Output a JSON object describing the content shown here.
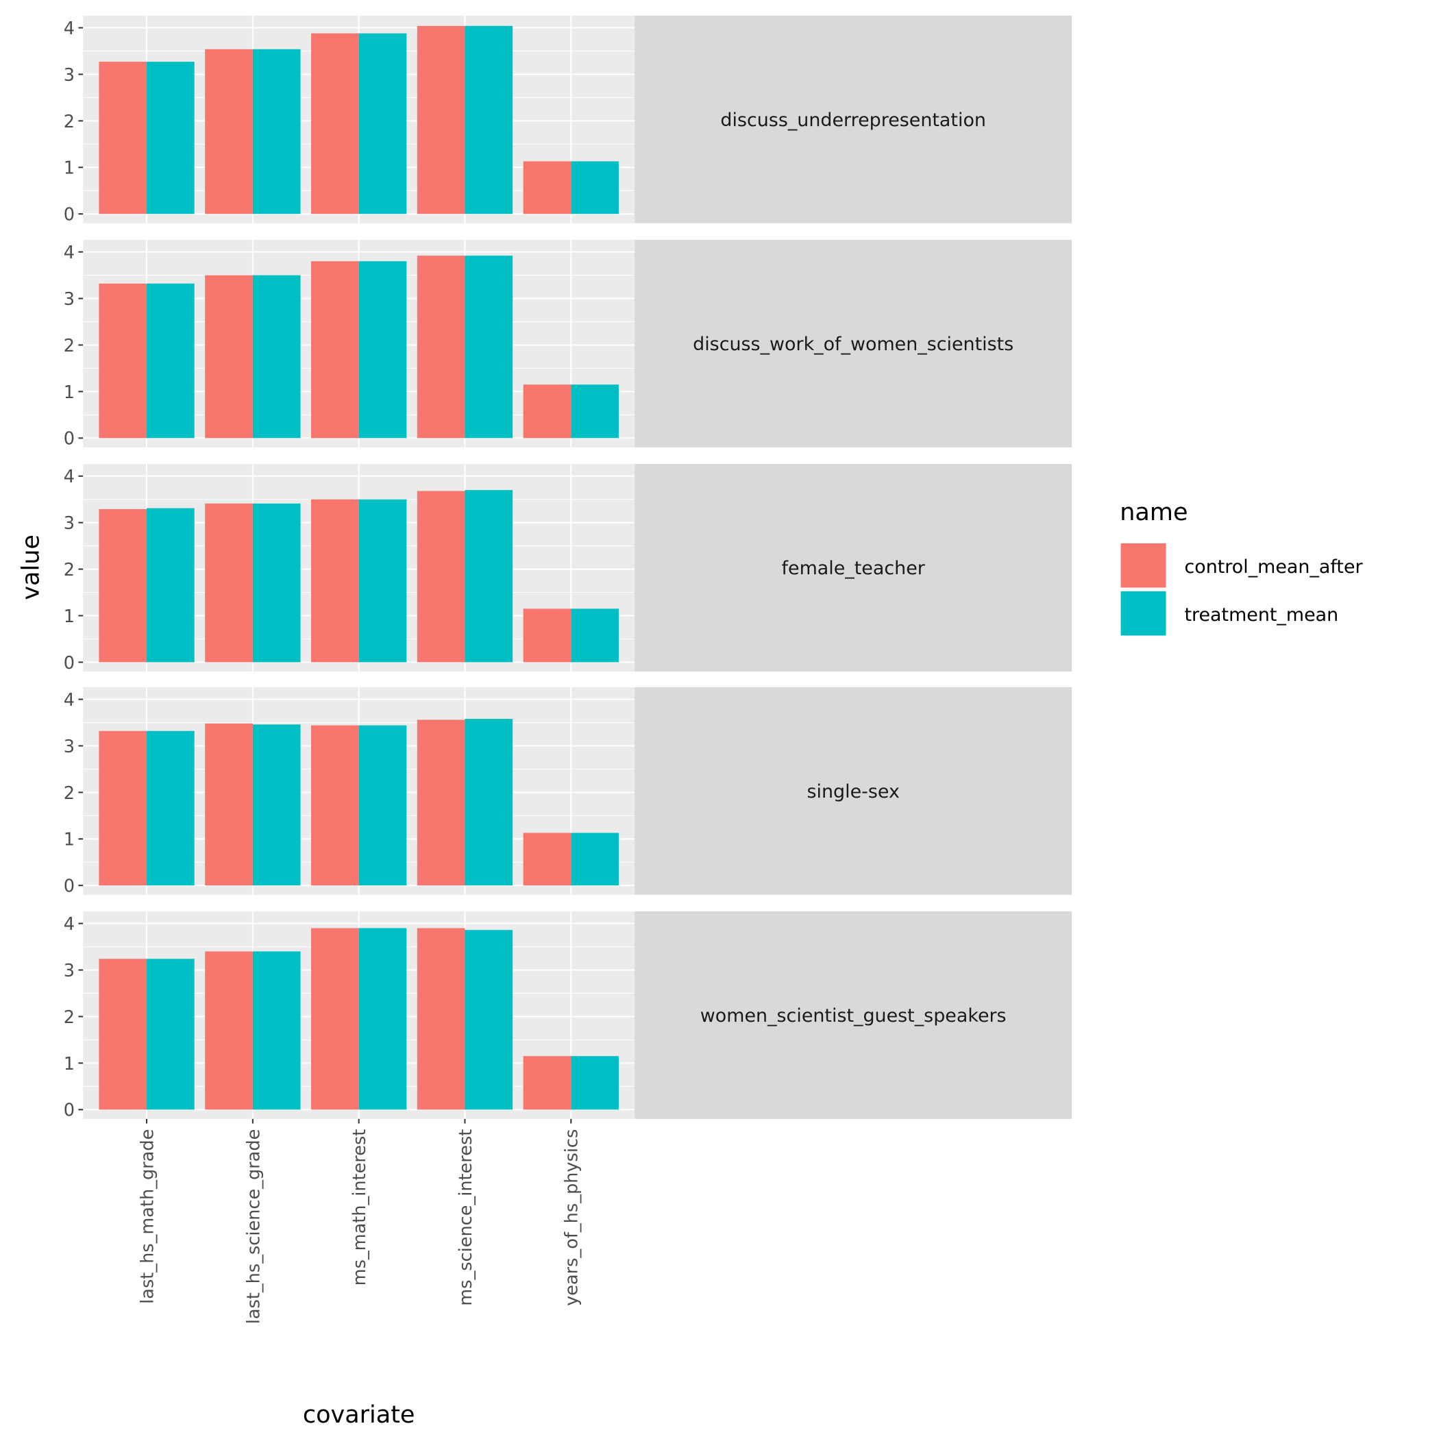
{
  "chart_data": {
    "type": "bar",
    "layout": "faceted bar chart, one row per facet, facet strips on the right",
    "xlabel": "covariate",
    "ylabel": "value",
    "ylim": [
      -0.2,
      4.26
    ],
    "y_ticks": [
      "0",
      "1",
      "2",
      "3",
      "4"
    ],
    "grid": true,
    "legend": {
      "title": "name",
      "position": "right"
    },
    "categories": [
      "last_hs_math_grade",
      "last_hs_science_grade",
      "ms_math_interest",
      "ms_science_interest",
      "years_of_hs_physics"
    ],
    "series_names": [
      "control_mean_after",
      "treatment_mean"
    ],
    "colors": {
      "control_mean_after": "#F8766D",
      "treatment_mean": "#00BFC4"
    },
    "facets": [
      {
        "label": "discuss_underrepresentation",
        "series": [
          {
            "name": "control_mean_after",
            "values": [
              3.27,
              3.54,
              3.88,
              4.04,
              1.13
            ]
          },
          {
            "name": "treatment_mean",
            "values": [
              3.27,
              3.54,
              3.88,
              4.04,
              1.13
            ]
          }
        ]
      },
      {
        "label": "discuss_work_of_women_scientists",
        "series": [
          {
            "name": "control_mean_after",
            "values": [
              3.32,
              3.5,
              3.8,
              3.92,
              1.15
            ]
          },
          {
            "name": "treatment_mean",
            "values": [
              3.32,
              3.5,
              3.8,
              3.92,
              1.15
            ]
          }
        ]
      },
      {
        "label": "female_teacher",
        "series": [
          {
            "name": "control_mean_after",
            "values": [
              3.29,
              3.41,
              3.5,
              3.68,
              1.15
            ]
          },
          {
            "name": "treatment_mean",
            "values": [
              3.31,
              3.41,
              3.5,
              3.7,
              1.15
            ]
          }
        ]
      },
      {
        "label": "single-sex",
        "series": [
          {
            "name": "control_mean_after",
            "values": [
              3.32,
              3.48,
              3.44,
              3.56,
              1.13
            ]
          },
          {
            "name": "treatment_mean",
            "values": [
              3.32,
              3.46,
              3.44,
              3.58,
              1.13
            ]
          }
        ]
      },
      {
        "label": "women_scientist_guest_speakers",
        "series": [
          {
            "name": "control_mean_after",
            "values": [
              3.24,
              3.4,
              3.9,
              3.9,
              1.15
            ]
          },
          {
            "name": "treatment_mean",
            "values": [
              3.24,
              3.4,
              3.9,
              3.86,
              1.15
            ]
          }
        ]
      }
    ]
  }
}
